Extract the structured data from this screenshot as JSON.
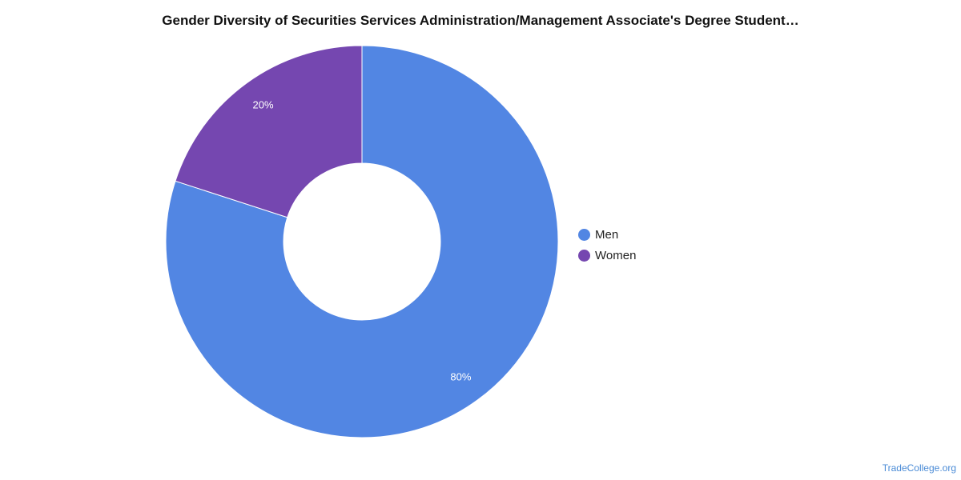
{
  "chart_data": {
    "type": "pie",
    "title": "Gender Diversity of Securities Services Administration/Management Associate's Degree Student…",
    "series": [
      {
        "name": "Men",
        "value": 80,
        "label": "80%",
        "color": "#5286e3"
      },
      {
        "name": "Women",
        "value": 20,
        "label": "20%",
        "color": "#7547b0"
      }
    ],
    "donut": true,
    "legend_position": "right"
  },
  "watermark": "TradeCollege.org"
}
